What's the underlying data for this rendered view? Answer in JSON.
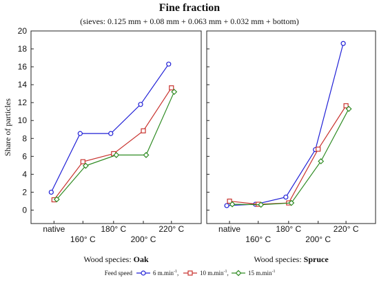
{
  "chart_data": {
    "type": "line",
    "title": "Fine fraction",
    "subtitle": "(sieves: 0.125 mm + 0.08 mm + 0.063 mm + 0.032 mm + bottom)",
    "ylabel": "Share of particles",
    "ylim": [
      -1.5,
      20
    ],
    "yticks": [
      0,
      2,
      4,
      6,
      8,
      10,
      12,
      14,
      16,
      18,
      20
    ],
    "categories": [
      "native",
      "160° C",
      "180° C",
      "200° C",
      "220° C"
    ],
    "grid": false,
    "legend": {
      "placement": "bottom",
      "title": "Feed speed",
      "entries": [
        {
          "label": "6 m.min",
          "superscript": "-1",
          "suffix": ",",
          "color": "#1f1fd6",
          "marker": "circle"
        },
        {
          "label": "10 m.min",
          "superscript": "-1",
          "suffix": ",",
          "color": "#c8322d",
          "marker": "square"
        },
        {
          "label": "15 m.min",
          "superscript": "-1",
          "suffix": "",
          "color": "#2e8b22",
          "marker": "diamond"
        }
      ]
    },
    "panels": [
      {
        "xlabel_prefix": "Wood species: ",
        "xlabel_bold": "Oak",
        "series": [
          {
            "name": "6 m.min-1",
            "values": [
              2.0,
              8.55,
              8.55,
              11.8,
              16.3
            ]
          },
          {
            "name": "10 m.min-1",
            "values": [
              1.15,
              5.4,
              6.3,
              8.85,
              13.65
            ]
          },
          {
            "name": "15 m.min-1",
            "values": [
              1.2,
              4.95,
              6.15,
              6.15,
              13.2
            ]
          }
        ]
      },
      {
        "xlabel_prefix": "Wood species: ",
        "xlabel_bold": "Spruce",
        "series": [
          {
            "name": "6 m.min-1",
            "values": [
              0.5,
              0.65,
              1.45,
              6.75,
              18.6
            ]
          },
          {
            "name": "10 m.min-1",
            "values": [
              1.0,
              0.65,
              0.8,
              6.8,
              11.65
            ]
          },
          {
            "name": "15 m.min-1",
            "values": [
              0.65,
              0.6,
              0.8,
              5.45,
              11.3
            ]
          }
        ]
      }
    ]
  }
}
